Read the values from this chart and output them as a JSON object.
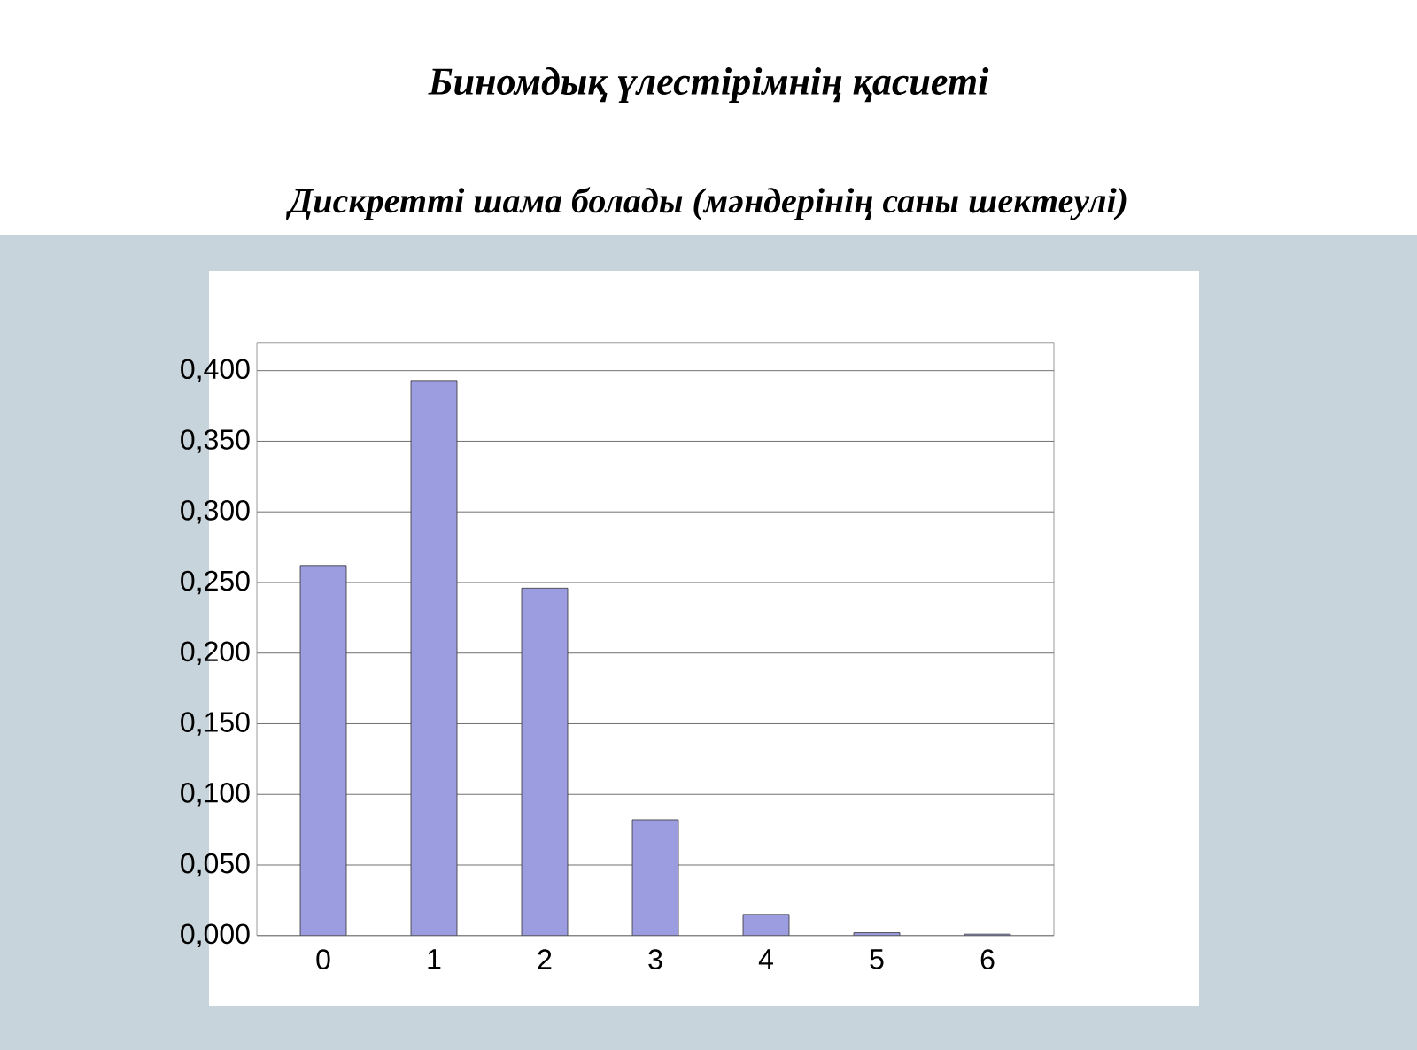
{
  "chart_data": {
    "type": "bar",
    "title": "Биномдық үлестірімнің қасиеті",
    "subtitle": "Дискретті шама болады (мәндерінің саны шектеулі)",
    "categories": [
      "0",
      "1",
      "2",
      "3",
      "4",
      "5",
      "6"
    ],
    "values": [
      0.262,
      0.393,
      0.246,
      0.082,
      0.015,
      0.002,
      0.001
    ],
    "color": "#9c9ce0",
    "grid": "y",
    "ylim": [
      0,
      0.42
    ],
    "yticks": [
      {
        "value": 0,
        "label": "0,000"
      },
      {
        "value": 0.05,
        "label": "0,050"
      },
      {
        "value": 0.1,
        "label": "0,100"
      },
      {
        "value": 0.15,
        "label": "0,150"
      },
      {
        "value": 0.2,
        "label": "0,200"
      },
      {
        "value": 0.25,
        "label": "0,250"
      },
      {
        "value": 0.3,
        "label": "0,300"
      },
      {
        "value": 0.35,
        "label": "0,350"
      },
      {
        "value": 0.4,
        "label": "0,400"
      }
    ]
  }
}
